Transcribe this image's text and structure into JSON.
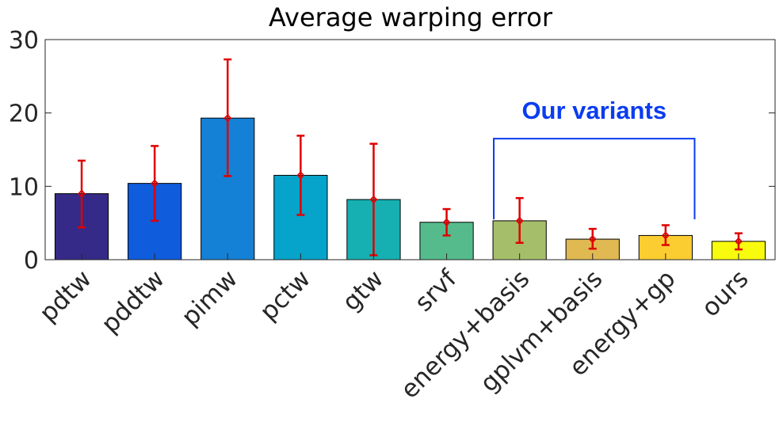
{
  "chart_data": {
    "type": "bar",
    "title": "Average warping error",
    "xlabel": "",
    "ylabel": "",
    "ylim": [
      0,
      30
    ],
    "yticks": [
      0,
      10,
      20,
      30
    ],
    "grid": false,
    "categories": [
      "pdtw",
      "pddtw",
      "pimw",
      "pctw",
      "gtw",
      "srvf",
      "energy+basis",
      "gplvm+basis",
      "energy+gp",
      "ours"
    ],
    "values": [
      9.0,
      10.4,
      19.3,
      11.5,
      8.2,
      5.1,
      5.3,
      2.8,
      3.3,
      2.5
    ],
    "error_bars": {
      "low": [
        4.4,
        5.3,
        11.4,
        6.1,
        0.6,
        3.3,
        2.3,
        1.5,
        2.0,
        1.4
      ],
      "high": [
        13.5,
        15.5,
        27.3,
        16.9,
        15.8,
        6.9,
        8.4,
        4.2,
        4.7,
        3.6
      ]
    },
    "colors": [
      "#352a87",
      "#0f5cdd",
      "#1481d6",
      "#06a4ca",
      "#16b0b2",
      "#55bb8c",
      "#a5be6a",
      "#e1b952",
      "#fccd30",
      "#f9fb0e"
    ],
    "error_color": "#e00000",
    "annotation": {
      "text": "Our variants",
      "color": "#0a3cf0",
      "bracket_from_category": "energy+basis",
      "bracket_to_category": "energy+gp",
      "bracket_level": 16.5,
      "bracket_bottom": 5.5
    }
  }
}
